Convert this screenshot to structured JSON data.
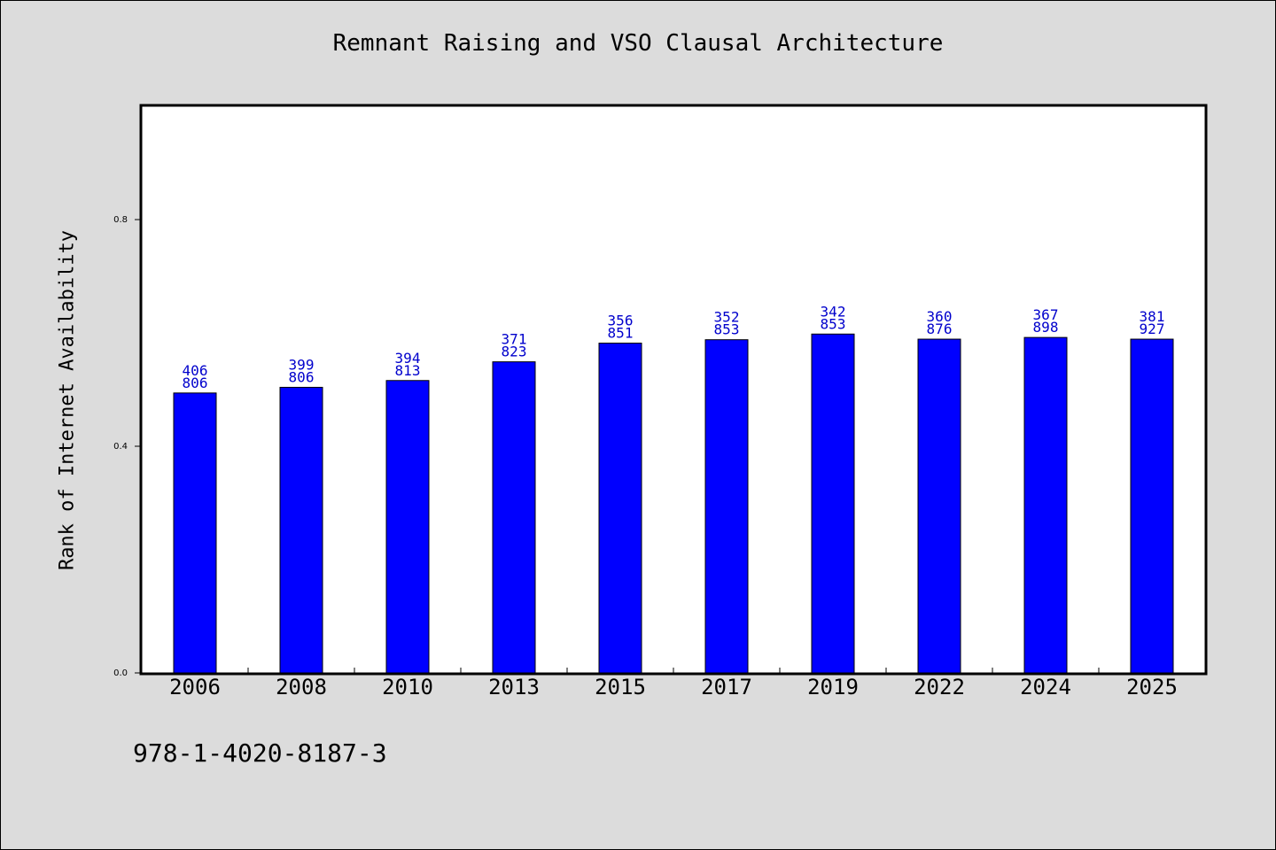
{
  "title": "Remnant Raising and VSO Clausal Architecture",
  "footer_text": "978-1-4020-8187-3",
  "colors": {
    "background": "#dcdcdc",
    "plot_background": "#ffffff",
    "bar": "#0000ff",
    "bar_label": "#0000cc"
  },
  "chart_data": {
    "type": "bar",
    "title": "Remnant Raising and VSO Clausal Architecture",
    "xlabel": "",
    "ylabel": "Rank of Internet Availability",
    "ylim": [
      0,
      1.0
    ],
    "yticks": [
      0.0,
      0.4,
      0.8
    ],
    "ytick_labels": [
      "0.0",
      "0.4",
      "0.8"
    ],
    "grid": false,
    "legend": "none",
    "categories": [
      "2006",
      "2008",
      "2010",
      "2013",
      "2015",
      "2017",
      "2019",
      "2022",
      "2024",
      "2025"
    ],
    "values": [
      0.494,
      0.504,
      0.516,
      0.549,
      0.582,
      0.588,
      0.598,
      0.589,
      0.592,
      0.589
    ],
    "bar_labels": [
      [
        "406",
        "806"
      ],
      [
        "399",
        "806"
      ],
      [
        "394",
        "813"
      ],
      [
        "371",
        "823"
      ],
      [
        "356",
        "851"
      ],
      [
        "352",
        "853"
      ],
      [
        "342",
        "853"
      ],
      [
        "360",
        "876"
      ],
      [
        "367",
        "898"
      ],
      [
        "381",
        "927"
      ]
    ]
  }
}
